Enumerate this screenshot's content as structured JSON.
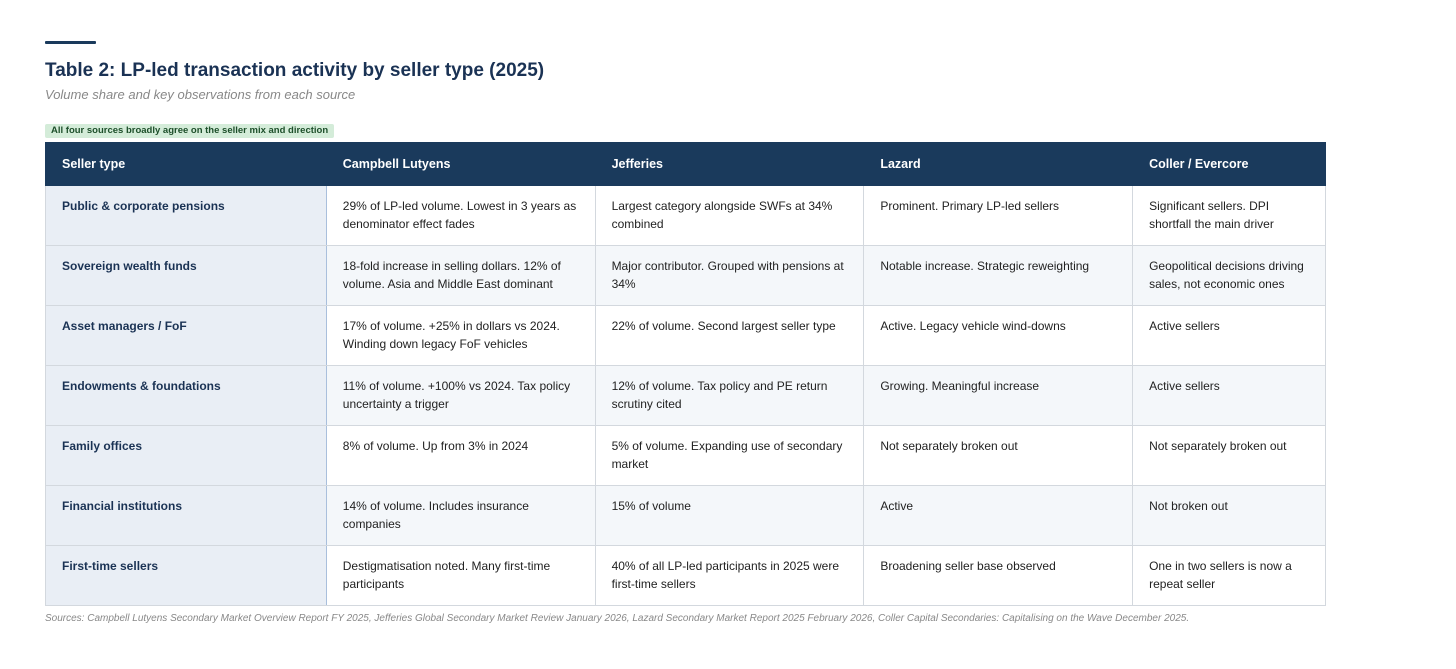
{
  "title": "Table 2: LP-led transaction activity by seller type (2025)",
  "subtitle": "Volume share and key observations from each source",
  "badge": "All four sources broadly agree on the seller mix and direction",
  "table": {
    "headers": [
      "Seller type",
      "Campbell Lutyens",
      "Jefferies",
      "Lazard",
      "Coller / Evercore"
    ],
    "rows": [
      [
        "Public & corporate pensions",
        "29% of LP-led volume. Lowest in 3 years as denominator effect fades",
        "Largest category alongside SWFs at 34% combined",
        "Prominent. Primary LP-led sellers",
        "Significant sellers. DPI shortfall the main driver"
      ],
      [
        "Sovereign wealth funds",
        "18-fold increase in selling dollars. 12% of volume. Asia and Middle East dominant",
        "Major contributor. Grouped with pensions at 34%",
        "Notable increase. Strategic reweighting",
        "Geopolitical decisions driving sales, not economic ones"
      ],
      [
        "Asset managers / FoF",
        "17% of volume. +25% in dollars vs 2024. Winding down legacy FoF vehicles",
        "22% of volume. Second largest seller type",
        "Active. Legacy vehicle wind-downs",
        "Active sellers"
      ],
      [
        "Endowments & foundations",
        "11% of volume. +100% vs 2024. Tax policy uncertainty a trigger",
        "12% of volume. Tax policy and PE return scrutiny cited",
        "Growing. Meaningful increase",
        "Active sellers"
      ],
      [
        "Family offices",
        "8% of volume. Up from 3% in 2024",
        "5% of volume. Expanding use of secondary market",
        "Not separately broken out",
        "Not separately broken out"
      ],
      [
        "Financial institutions",
        "14% of volume. Includes insurance companies",
        "15% of volume",
        "Active",
        "Not broken out"
      ],
      [
        "First-time sellers",
        "Destigmatisation noted. Many first-time participants",
        "40% of all LP-led participants in 2025 were first-time sellers",
        "Broadening seller base observed",
        "One in two sellers is now a repeat seller"
      ]
    ]
  },
  "sources": "Sources: Campbell Lutyens Secondary Market Overview Report FY 2025, Jefferies Global Secondary Market Review January 2026, Lazard Secondary Market Report 2025 February 2026, Coller Capital Secondaries: Capitalising on the Wave December 2025."
}
